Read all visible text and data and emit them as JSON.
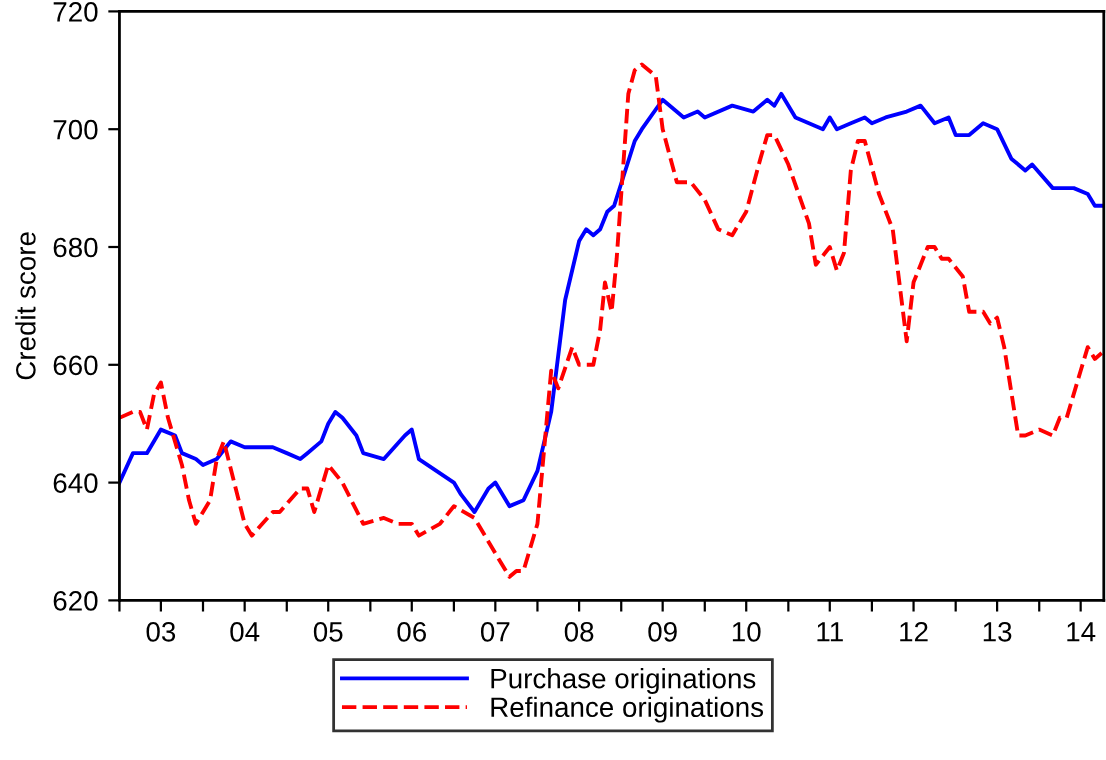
{
  "chart_data": {
    "type": "line",
    "ylabel": "Credit score",
    "ylim": [
      620,
      720
    ],
    "yticks": [
      620,
      640,
      660,
      680,
      700,
      720
    ],
    "xlim": [
      "2003-01-01",
      "2014-10-10"
    ],
    "xticks": [
      {
        "value": "2003-01-01",
        "label": null
      },
      {
        "value": "2003-07-01",
        "label": "03"
      },
      {
        "value": "2004-01-01",
        "label": null
      },
      {
        "value": "2004-07-01",
        "label": "04"
      },
      {
        "value": "2005-01-01",
        "label": null
      },
      {
        "value": "2005-07-01",
        "label": "05"
      },
      {
        "value": "2006-01-01",
        "label": null
      },
      {
        "value": "2006-07-01",
        "label": "06"
      },
      {
        "value": "2007-01-01",
        "label": null
      },
      {
        "value": "2007-07-01",
        "label": "07"
      },
      {
        "value": "2008-01-01",
        "label": null
      },
      {
        "value": "2008-07-01",
        "label": "08"
      },
      {
        "value": "2009-01-01",
        "label": null
      },
      {
        "value": "2009-07-01",
        "label": "09"
      },
      {
        "value": "2010-01-01",
        "label": null
      },
      {
        "value": "2010-07-01",
        "label": "10"
      },
      {
        "value": "2011-01-01",
        "label": null
      },
      {
        "value": "2011-07-01",
        "label": "11"
      },
      {
        "value": "2012-01-01",
        "label": null
      },
      {
        "value": "2012-07-01",
        "label": "12"
      },
      {
        "value": "2013-01-01",
        "label": null
      },
      {
        "value": "2013-07-01",
        "label": "13"
      },
      {
        "value": "2014-01-01",
        "label": null
      },
      {
        "value": "2014-07-01",
        "label": "14"
      }
    ],
    "grid": false,
    "legend": "bottom",
    "marker": "none",
    "series": [
      {
        "name": "Purchase originations",
        "color": "#0000ff",
        "line_style": "solid",
        "x": [
          "2003-01",
          "2003-03",
          "2003-05",
          "2003-07",
          "2003-09",
          "2003-10",
          "2003-12",
          "2004-01",
          "2004-03",
          "2004-05",
          "2004-07",
          "2004-11",
          "2005-01",
          "2005-03",
          "2005-04",
          "2005-06",
          "2005-07",
          "2005-08",
          "2005-09",
          "2005-11",
          "2005-12",
          "2006-03",
          "2006-06",
          "2006-07",
          "2006-08",
          "2007-01",
          "2007-02",
          "2007-04",
          "2007-06",
          "2007-07",
          "2007-09",
          "2007-11",
          "2008-01",
          "2008-03",
          "2008-05",
          "2008-07",
          "2008-08",
          "2008-09",
          "2008-10",
          "2008-11",
          "2008-12",
          "2009-03",
          "2009-04",
          "2009-07",
          "2009-10",
          "2009-12",
          "2010-01",
          "2010-05",
          "2010-08",
          "2010-10",
          "2010-11",
          "2010-12",
          "2011-02",
          "2011-04",
          "2011-06",
          "2011-07",
          "2011-08",
          "2011-10",
          "2011-12",
          "2012-01",
          "2012-03",
          "2012-06",
          "2012-08",
          "2012-10",
          "2012-12",
          "2013-01",
          "2013-03",
          "2013-05",
          "2013-07",
          "2013-09",
          "2013-11",
          "2013-12",
          "2014-03",
          "2014-06",
          "2014-08",
          "2014-09",
          "2014-10"
        ],
        "values": [
          640,
          645,
          645,
          649,
          648,
          645,
          644,
          643,
          644,
          647,
          646,
          646,
          645,
          644,
          645,
          647,
          650,
          652,
          651,
          648,
          645,
          644,
          648,
          649,
          644,
          640,
          638,
          635,
          639,
          640,
          636,
          637,
          642,
          652,
          671,
          681,
          683,
          682,
          683,
          686,
          687,
          698,
          700,
          705,
          702,
          703,
          702,
          704,
          703,
          705,
          704,
          706,
          702,
          701,
          700,
          702,
          700,
          701,
          702,
          701,
          702,
          703,
          704,
          701,
          702,
          699,
          699,
          701,
          700,
          695,
          693,
          694,
          690,
          690,
          689,
          687,
          687
        ]
      },
      {
        "name": "Refinance originations",
        "color": "#ff0000",
        "line_style": "dashed",
        "x": [
          "2003-01",
          "2003-03",
          "2003-04",
          "2003-05",
          "2003-06",
          "2003-07",
          "2003-08",
          "2003-10",
          "2003-11",
          "2003-12",
          "2004-02",
          "2004-03",
          "2004-04",
          "2004-07",
          "2004-08",
          "2004-11",
          "2004-12",
          "2005-03",
          "2005-04",
          "2005-05",
          "2005-07",
          "2005-09",
          "2005-12",
          "2006-03",
          "2006-05",
          "2006-07",
          "2006-08",
          "2006-11",
          "2007-01",
          "2007-04",
          "2007-07",
          "2007-09",
          "2007-10",
          "2007-11",
          "2008-01",
          "2008-03",
          "2008-04",
          "2008-06",
          "2008-07",
          "2008-09",
          "2008-10-01",
          "2008-10-22",
          "2008-11-20",
          "2008-12-12",
          "2009-02",
          "2009-03",
          "2009-04",
          "2009-06",
          "2009-07",
          "2009-09",
          "2009-11",
          "2010-01",
          "2010-03",
          "2010-05",
          "2010-07",
          "2010-09",
          "2010-10",
          "2010-11",
          "2011-01",
          "2011-04",
          "2011-05",
          "2011-07",
          "2011-08",
          "2011-09",
          "2011-10",
          "2011-11",
          "2011-12",
          "2012-02",
          "2012-04",
          "2012-06",
          "2012-07",
          "2012-09",
          "2012-10",
          "2012-11",
          "2012-12",
          "2013-02",
          "2013-03",
          "2013-05",
          "2013-06",
          "2013-07",
          "2013-08",
          "2013-10",
          "2013-11",
          "2014-01",
          "2014-03",
          "2014-04",
          "2014-05",
          "2014-07",
          "2014-08",
          "2014-09",
          "2014-10"
        ],
        "values": [
          651,
          652,
          652,
          649,
          655,
          657,
          651,
          643,
          637,
          633,
          637,
          644,
          647,
          633,
          631,
          635,
          635,
          639,
          639,
          635,
          643,
          640,
          633,
          634,
          633,
          633,
          631,
          633,
          636,
          634,
          628,
          624,
          625,
          625,
          633,
          659,
          656,
          663,
          660,
          660,
          666,
          674,
          669,
          678,
          706,
          710,
          711,
          709,
          700,
          691,
          691,
          688,
          683,
          682,
          686,
          695,
          699,
          699,
          694,
          684,
          677,
          680,
          676,
          679,
          693,
          698,
          698,
          689,
          683,
          664,
          674,
          680,
          680,
          678,
          678,
          675,
          669,
          669,
          667,
          668,
          663,
          648,
          648,
          649,
          648,
          651,
          651,
          659,
          663,
          661,
          662
        ]
      }
    ]
  }
}
